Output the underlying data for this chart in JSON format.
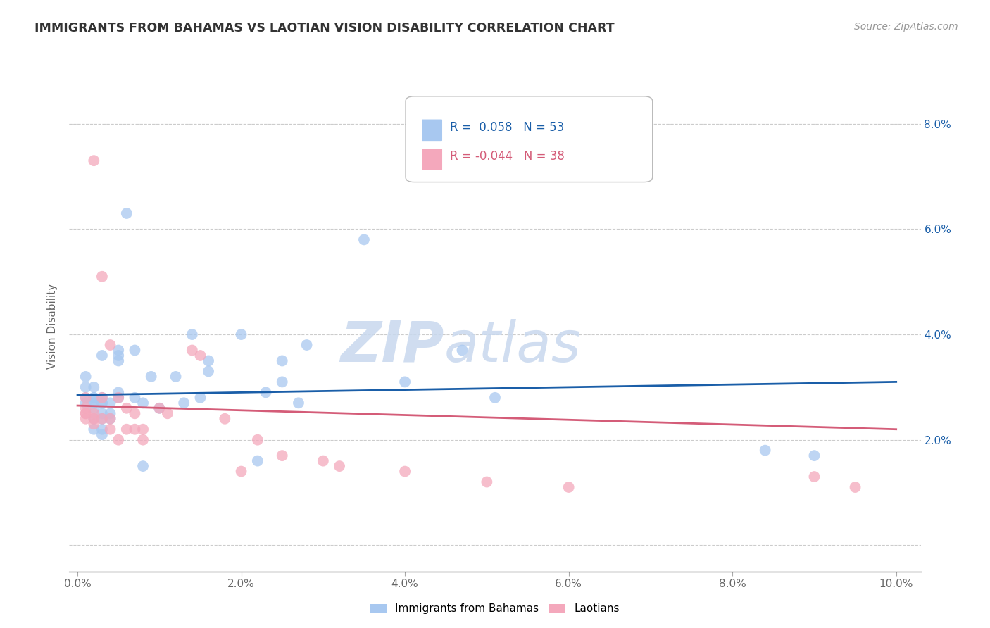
{
  "title": "IMMIGRANTS FROM BAHAMAS VS LAOTIAN VISION DISABILITY CORRELATION CHART",
  "source": "Source: ZipAtlas.com",
  "ylabel": "Vision Disability",
  "right_yticks": [
    0.0,
    0.02,
    0.04,
    0.06,
    0.08
  ],
  "right_yticklabels": [
    "",
    "2.0%",
    "4.0%",
    "6.0%",
    "8.0%"
  ],
  "x_bottom_ticks": [
    0.0,
    0.02,
    0.04,
    0.06,
    0.08,
    0.1
  ],
  "blue_R": 0.058,
  "blue_N": 53,
  "pink_R": -0.044,
  "pink_N": 38,
  "blue_color": "#A8C8F0",
  "pink_color": "#F4A8BC",
  "blue_line_color": "#1A5EA8",
  "pink_line_color": "#D45C78",
  "watermark_zip": "ZIP",
  "watermark_atlas": "atlas",
  "legend_label_blue": "Immigrants from Bahamas",
  "legend_label_pink": "Laotians",
  "blue_scatter_x": [
    0.001,
    0.001,
    0.001,
    0.001,
    0.002,
    0.002,
    0.002,
    0.002,
    0.002,
    0.002,
    0.002,
    0.003,
    0.003,
    0.003,
    0.003,
    0.003,
    0.003,
    0.003,
    0.003,
    0.004,
    0.004,
    0.004,
    0.005,
    0.005,
    0.005,
    0.005,
    0.005,
    0.006,
    0.007,
    0.007,
    0.008,
    0.008,
    0.009,
    0.01,
    0.012,
    0.013,
    0.014,
    0.015,
    0.016,
    0.016,
    0.02,
    0.022,
    0.023,
    0.025,
    0.025,
    0.027,
    0.028,
    0.035,
    0.04,
    0.047,
    0.051,
    0.084,
    0.09
  ],
  "blue_scatter_y": [
    0.027,
    0.03,
    0.028,
    0.032,
    0.022,
    0.024,
    0.026,
    0.027,
    0.028,
    0.028,
    0.03,
    0.021,
    0.022,
    0.024,
    0.025,
    0.027,
    0.027,
    0.028,
    0.036,
    0.024,
    0.025,
    0.027,
    0.028,
    0.029,
    0.035,
    0.037,
    0.036,
    0.063,
    0.028,
    0.037,
    0.015,
    0.027,
    0.032,
    0.026,
    0.032,
    0.027,
    0.04,
    0.028,
    0.033,
    0.035,
    0.04,
    0.016,
    0.029,
    0.031,
    0.035,
    0.027,
    0.038,
    0.058,
    0.031,
    0.037,
    0.028,
    0.018,
    0.017
  ],
  "pink_scatter_x": [
    0.001,
    0.001,
    0.001,
    0.001,
    0.001,
    0.002,
    0.002,
    0.002,
    0.002,
    0.003,
    0.003,
    0.003,
    0.004,
    0.004,
    0.004,
    0.005,
    0.005,
    0.006,
    0.006,
    0.007,
    0.007,
    0.008,
    0.008,
    0.01,
    0.011,
    0.014,
    0.015,
    0.018,
    0.02,
    0.022,
    0.025,
    0.03,
    0.032,
    0.04,
    0.05,
    0.06,
    0.09,
    0.095
  ],
  "pink_scatter_y": [
    0.024,
    0.025,
    0.025,
    0.026,
    0.028,
    0.023,
    0.024,
    0.025,
    0.073,
    0.024,
    0.028,
    0.051,
    0.022,
    0.024,
    0.038,
    0.02,
    0.028,
    0.022,
    0.026,
    0.022,
    0.025,
    0.02,
    0.022,
    0.026,
    0.025,
    0.037,
    0.036,
    0.024,
    0.014,
    0.02,
    0.017,
    0.016,
    0.015,
    0.014,
    0.012,
    0.011,
    0.013,
    0.011
  ],
  "blue_trend_x": [
    0.0,
    0.1
  ],
  "blue_trend_y_start": 0.0285,
  "blue_trend_y_end": 0.031,
  "pink_trend_x": [
    0.0,
    0.1
  ],
  "pink_trend_y_start": 0.0265,
  "pink_trend_y_end": 0.022,
  "xlim": [
    -0.001,
    0.103
  ],
  "ylim": [
    -0.005,
    0.088
  ]
}
